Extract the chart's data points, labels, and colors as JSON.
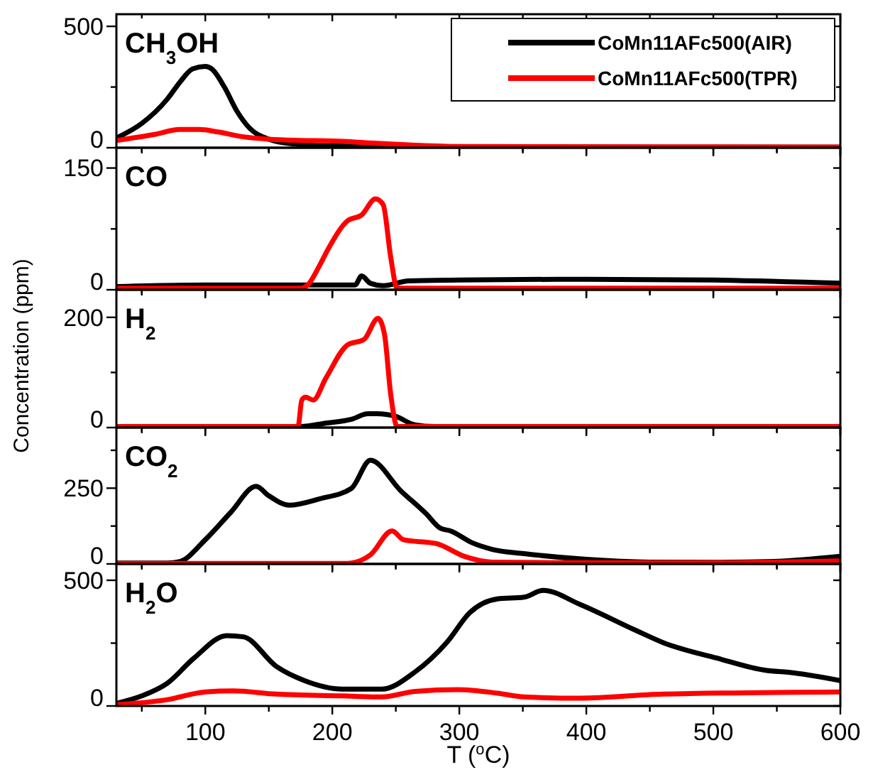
{
  "chart_data": [
    {
      "type": "line",
      "title": "CH$_{3}$OH",
      "xlim": [
        30,
        600
      ],
      "ylim": [
        0,
        550
      ],
      "tick_labels": "y",
      "legend": "top right",
      "xticks": [
        {
          "value": 50,
          "label": null
        },
        100,
        {
          "value": 150,
          "label": null
        },
        200,
        {
          "value": 250,
          "label": null
        },
        300,
        {
          "value": 350,
          "label": null
        },
        400,
        {
          "value": 450,
          "label": null
        },
        500,
        {
          "value": 550,
          "label": null
        },
        600
      ],
      "yticks": [
        0,
        {
          "value": 250,
          "label": null
        },
        500
      ],
      "series": [
        {
          "name": "CoMn11AFc500(AIR)",
          "color": "#000000",
          "x": [
            30,
            50,
            70,
            80,
            90,
            100,
            105,
            115,
            125,
            135,
            150,
            170,
            200,
            250,
            300,
            600
          ],
          "values": [
            40,
            100,
            200,
            270,
            325,
            335,
            325,
            250,
            150,
            80,
            35,
            15,
            8,
            5,
            3,
            2
          ]
        },
        {
          "name": "CoMn11AFc500(TPR)",
          "color": "#ff0000",
          "x": [
            30,
            60,
            80,
            95,
            110,
            130,
            150,
            175,
            200,
            230,
            260,
            300,
            600
          ],
          "values": [
            30,
            55,
            75,
            75,
            65,
            45,
            35,
            30,
            28,
            20,
            12,
            5,
            3
          ]
        }
      ]
    },
    {
      "type": "line",
      "title": "CO",
      "xlim": [
        30,
        600
      ],
      "ylim": [
        0,
        175
      ],
      "tick_labels": "y",
      "xticks": [
        {
          "value": 50,
          "label": null
        },
        100,
        {
          "value": 150,
          "label": null
        },
        200,
        {
          "value": 250,
          "label": null
        },
        300,
        {
          "value": 350,
          "label": null
        },
        400,
        {
          "value": 450,
          "label": null
        },
        500,
        {
          "value": 550,
          "label": null
        },
        600
      ],
      "yticks": [
        0,
        {
          "value": 75,
          "label": null
        },
        150
      ],
      "series": [
        {
          "color": "#000000",
          "x": [
            30,
            100,
            200,
            218,
            223,
            230,
            240,
            260,
            300,
            400,
            500,
            600
          ],
          "values": [
            4,
            6,
            6,
            6,
            17,
            8,
            5,
            11,
            12,
            13,
            12,
            8
          ]
        },
        {
          "color": "#ff0000",
          "x": [
            30,
            175,
            180,
            190,
            197,
            212,
            223,
            234,
            240,
            246,
            251,
            300,
            600
          ],
          "values": [
            2,
            2,
            5,
            30,
            51,
            85,
            92,
            112,
            105,
            40,
            2,
            2,
            2
          ]
        }
      ]
    },
    {
      "type": "line",
      "title": "H$_{2}$",
      "ylabel": "Concentration (ppm)",
      "xlim": [
        30,
        600
      ],
      "ylim": [
        0,
        250
      ],
      "tick_labels": "y",
      "xticks": [
        {
          "value": 50,
          "label": null
        },
        100,
        {
          "value": 150,
          "label": null
        },
        200,
        {
          "value": 250,
          "label": null
        },
        300,
        {
          "value": 350,
          "label": null
        },
        400,
        {
          "value": 450,
          "label": null
        },
        500,
        {
          "value": 550,
          "label": null
        },
        600
      ],
      "yticks": [
        0,
        {
          "value": 100,
          "label": null
        },
        200
      ],
      "series": [
        {
          "color": "#000000",
          "x": [
            30,
            175,
            195,
            215,
            228,
            235,
            250,
            265,
            280,
            600
          ],
          "values": [
            2,
            2,
            8,
            15,
            25,
            25,
            20,
            5,
            2,
            2
          ]
        },
        {
          "color": "#ff0000",
          "x": [
            30,
            173,
            176,
            179,
            185,
            195,
            212,
            225,
            236,
            241,
            246,
            251,
            600
          ],
          "values": [
            2,
            2,
            50,
            55,
            50,
            90,
            150,
            160,
            198,
            170,
            60,
            2,
            2
          ]
        }
      ]
    },
    {
      "type": "line",
      "title": "CO$_{2}$",
      "xlim": [
        30,
        600
      ],
      "ylim": [
        0,
        450
      ],
      "tick_labels": "y",
      "xticks": [
        {
          "value": 50,
          "label": null
        },
        100,
        {
          "value": 150,
          "label": null
        },
        200,
        {
          "value": 250,
          "label": null
        },
        300,
        {
          "value": 350,
          "label": null
        },
        400,
        {
          "value": 450,
          "label": null
        },
        500,
        {
          "value": 550,
          "label": null
        },
        600
      ],
      "yticks": [
        0,
        {
          "value": 125,
          "label": null
        },
        250,
        {
          "value": 375,
          "label": null
        }
      ],
      "series": [
        {
          "color": "#000000",
          "x": [
            30,
            70,
            80,
            100,
            120,
            140,
            150,
            166,
            190,
            215,
            230,
            254,
            274,
            285,
            293,
            310,
            326,
            351,
            400,
            450,
            500,
            547,
            600
          ],
          "values": [
            3,
            3,
            8,
            80,
            170,
            256,
            225,
            194,
            215,
            249,
            342,
            241,
            165,
            118,
            109,
            70,
            48,
            34,
            15,
            6,
            5,
            8,
            25
          ]
        },
        {
          "color": "#ff0000",
          "x": [
            30,
            212,
            230,
            247,
            256,
            282,
            304,
            326,
            400,
            500,
            600
          ],
          "values": [
            2,
            2,
            30,
            109,
            80,
            67,
            25,
            6,
            4,
            4,
            10
          ]
        }
      ]
    },
    {
      "type": "line",
      "title": "H$_{2}$O",
      "xlabel": "T ($^{o}$C)",
      "xlim": [
        30,
        600
      ],
      "ylim": [
        0,
        565
      ],
      "xticks": [
        {
          "value": 50,
          "label": null
        },
        100,
        {
          "value": 150,
          "label": null
        },
        200,
        {
          "value": 250,
          "label": null
        },
        300,
        {
          "value": 350,
          "label": null
        },
        400,
        {
          "value": 450,
          "label": null
        },
        500,
        {
          "value": 550,
          "label": null
        },
        600
      ],
      "yticks": [
        0,
        {
          "value": 250,
          "label": null
        },
        500
      ],
      "series": [
        {
          "color": "#000000",
          "x": [
            30,
            50,
            70,
            91,
            117,
            130,
            156,
            178,
            208,
            239,
            265,
            291,
            308,
            330,
            351,
            366,
            395,
            438,
            460,
            503,
            542,
            559,
            600
          ],
          "values": [
            10,
            40,
            90,
            190,
            280,
            275,
            157,
            101,
            67,
            67,
            135,
            258,
            370,
            426,
            433,
            460,
            404,
            303,
            253,
            190,
            141,
            134,
            101
          ]
        },
        {
          "color": "#ff0000",
          "x": [
            30,
            70,
            100,
            122,
            156,
            208,
            239,
            265,
            299,
            330,
            351,
            395,
            460,
            600
          ],
          "values": [
            5,
            25,
            56,
            60,
            47,
            40,
            36,
            58,
            65,
            51,
            36,
            31,
            47,
            56
          ]
        }
      ]
    }
  ]
}
